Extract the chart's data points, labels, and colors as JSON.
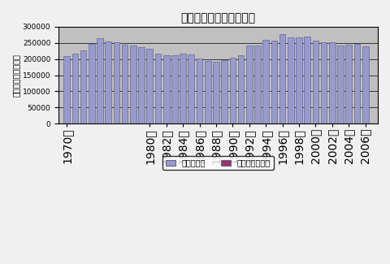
{
  "title": "原油の輸入・国産産出量",
  "ylabel": "（千キロリットル）",
  "bar_color_import": "#9999CC",
  "bar_color_domestic": "#993366",
  "bar_edge_color": "#555588",
  "fig_bg_color": "#F0F0F0",
  "plot_bg_color": "#C0C0C0",
  "grid_color": "#000000",
  "ylim": [
    0,
    300000
  ],
  "yticks": [
    0,
    50000,
    100000,
    150000,
    200000,
    250000,
    300000
  ],
  "legend_import": "原油輸入量",
  "legend_domestic": "国産原油生産量",
  "figsize": [
    4.8,
    3.25
  ],
  "dpi": 100,
  "label_years": [
    1970,
    1980,
    1982,
    1984,
    1986,
    1988,
    1990,
    1992,
    1994,
    1996,
    1998,
    2000,
    2002,
    2004,
    2006
  ],
  "years_x": [
    1970,
    1971,
    1972,
    1973,
    1974,
    1975,
    1976,
    1977,
    1978,
    1979,
    1980,
    1981,
    1982,
    1983,
    1984,
    1985,
    1986,
    1987,
    1988,
    1989,
    1990,
    1991,
    1992,
    1993,
    1994,
    1995,
    1996,
    1997,
    1998,
    1999,
    2000,
    2001,
    2002,
    2003,
    2004,
    2005,
    2006
  ],
  "imports": [
    209000,
    218000,
    228000,
    248000,
    265000,
    255000,
    251000,
    244000,
    243000,
    237000,
    232000,
    218000,
    211000,
    212000,
    216000,
    214000,
    202000,
    195000,
    192000,
    196000,
    205000,
    213000,
    241000,
    241000,
    259000,
    258000,
    276000,
    266000,
    268000,
    270000,
    257000,
    252000,
    252000,
    243000,
    245000,
    247000,
    240000
  ],
  "domestic": [
    700,
    700,
    700,
    700,
    700,
    700,
    700,
    700,
    700,
    700,
    700,
    700,
    700,
    700,
    700,
    700,
    700,
    700,
    700,
    700,
    700,
    700,
    700,
    700,
    700,
    700,
    700,
    700,
    700,
    700,
    700,
    700,
    700,
    700,
    700,
    700,
    700
  ]
}
